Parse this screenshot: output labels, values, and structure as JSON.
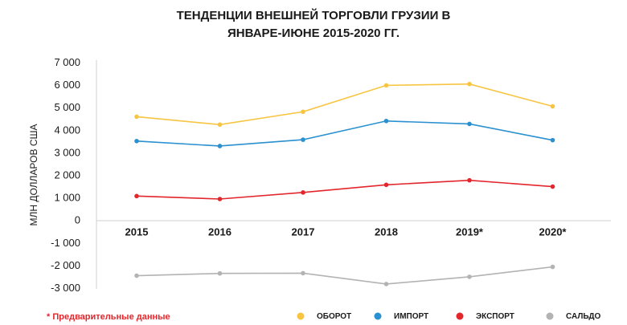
{
  "chart_data": {
    "type": "line",
    "title_lines": [
      "ТЕНДЕНЦИИ ВНЕШНЕЙ ТОРГОВЛИ ГРУЗИИ В",
      "ЯНВАРЕ-ИЮНЕ 2015-2020 ГГ."
    ],
    "ylabel": "МЛН ДОЛЛАРОВ США",
    "categories": [
      "2015",
      "2016",
      "2017",
      "2018",
      "2019*",
      "2020*"
    ],
    "ylim": [
      -3000,
      7000
    ],
    "yticks": [
      7000,
      6000,
      5000,
      4000,
      3000,
      2000,
      1000,
      0,
      -1000,
      -2000,
      -3000
    ],
    "ytick_labels": [
      "7 000",
      "6 000",
      "5 000",
      "4 000",
      "3 000",
      "2 000",
      "1 000",
      "0",
      "-1 000",
      "-2 000",
      "-3 000"
    ],
    "series": [
      {
        "name": "ОБОРОТ",
        "color": "#f7c542",
        "values": [
          4600,
          4250,
          4820,
          5990,
          6050,
          5060
        ]
      },
      {
        "name": "ИМПОРТ",
        "color": "#2a90d0",
        "values": [
          3520,
          3300,
          3580,
          4410,
          4280,
          3560
        ]
      },
      {
        "name": "ЭКСПОРТ",
        "color": "#e3262c",
        "values": [
          1080,
          950,
          1240,
          1580,
          1780,
          1500
        ]
      },
      {
        "name": "САЛЬДО",
        "color": "#b3b3b3",
        "values": [
          -2450,
          -2350,
          -2340,
          -2820,
          -2500,
          -2060
        ]
      }
    ],
    "note": "* Предварительные данные",
    "legend_position": "bottom"
  }
}
